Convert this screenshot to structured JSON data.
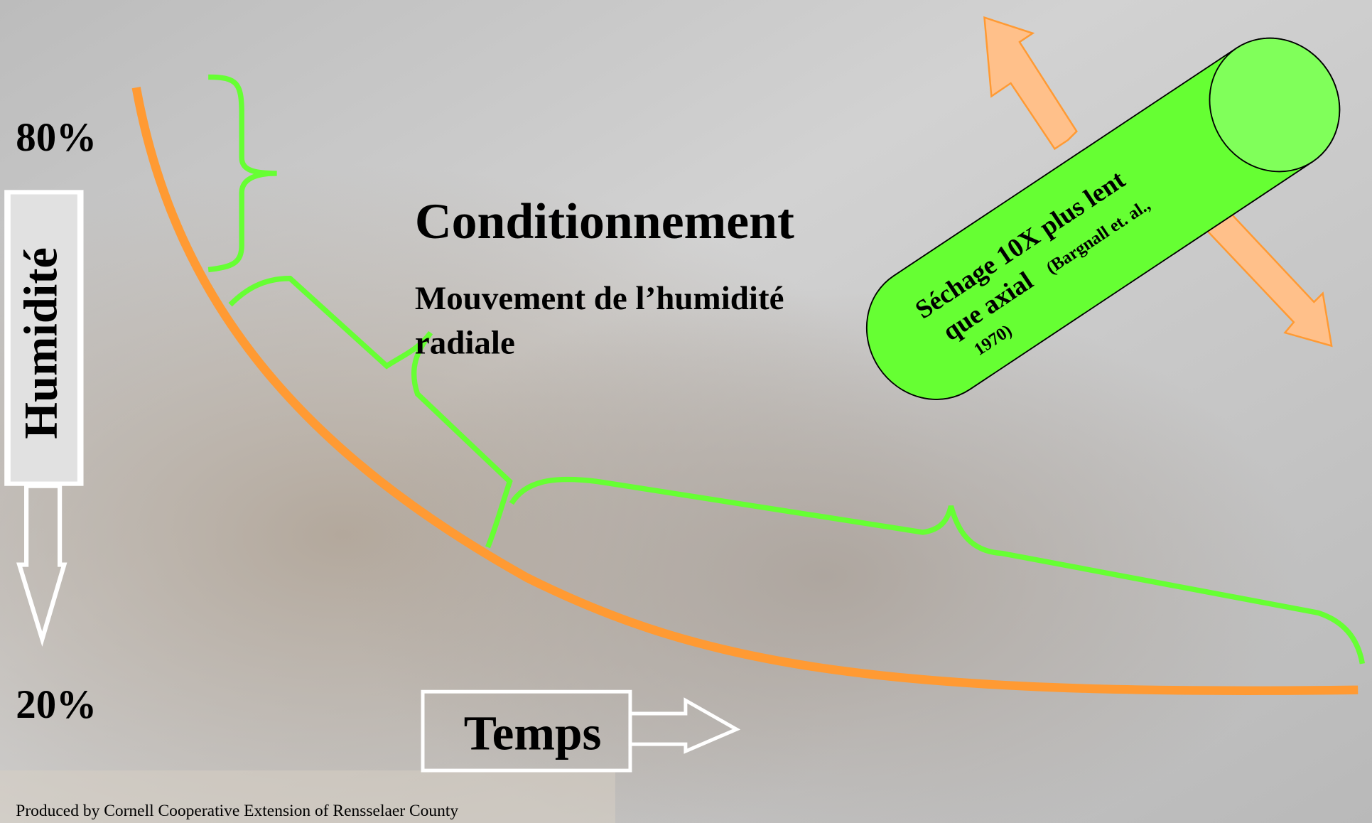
{
  "labels": {
    "top": "80%",
    "bottom": "20%",
    "y_axis": "Humidité",
    "x_axis": "Temps"
  },
  "heading": {
    "title": "Conditionnement",
    "subtitle_lines": [
      "Mouvement de l’humidité",
      "radiale"
    ]
  },
  "cylinder": {
    "lines": [
      "Séchage 10X plus lent",
      "que axial"
    ],
    "citation_lines": [
      "(Bargnall et. al.,",
      "1970)"
    ]
  },
  "footer": "Produced by Cornell Cooperative Extension of Rensselaer County"
}
